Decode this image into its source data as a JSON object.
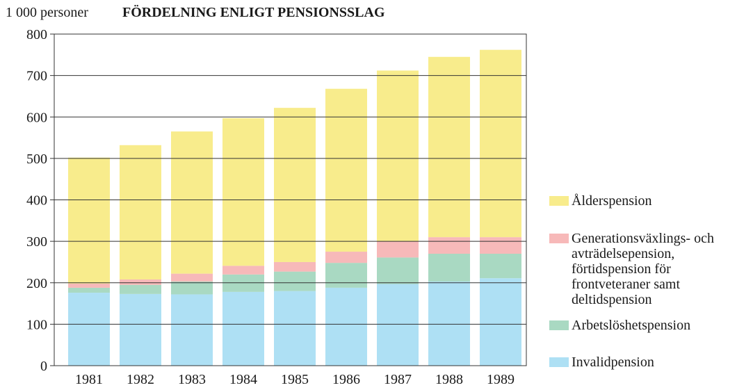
{
  "chart_data": {
    "type": "stacked-bar",
    "title": "FÖRDELNING ENLIGT PENSIONSSLAG",
    "y_label": "1 000 personer",
    "categories": [
      "1981",
      "1982",
      "1983",
      "1984",
      "1985",
      "1986",
      "1987",
      "1988",
      "1989"
    ],
    "series": [
      {
        "name": "Invalidpension",
        "color": "#aee0f4",
        "values": [
          176,
          173,
          172,
          178,
          180,
          188,
          197,
          203,
          211
        ]
      },
      {
        "name": "Arbetslöshetspension",
        "color": "#a9d9c2",
        "values": [
          12,
          22,
          31,
          42,
          47,
          60,
          64,
          67,
          59
        ]
      },
      {
        "name": "Generationsväxlings- och avträdelsepension, förtidspension för frontveteraner samt deltidspension",
        "color": "#f7b9b9",
        "values": [
          10,
          13,
          19,
          21,
          23,
          27,
          39,
          40,
          40
        ]
      },
      {
        "name": "Ålderspension",
        "color": "#f8ec8c",
        "values": [
          304,
          324,
          343,
          356,
          372,
          393,
          412,
          435,
          452
        ]
      }
    ],
    "ylim": [
      0,
      800
    ],
    "yticks": [
      0,
      100,
      200,
      300,
      400,
      500,
      600,
      700,
      800
    ],
    "grid": true
  }
}
